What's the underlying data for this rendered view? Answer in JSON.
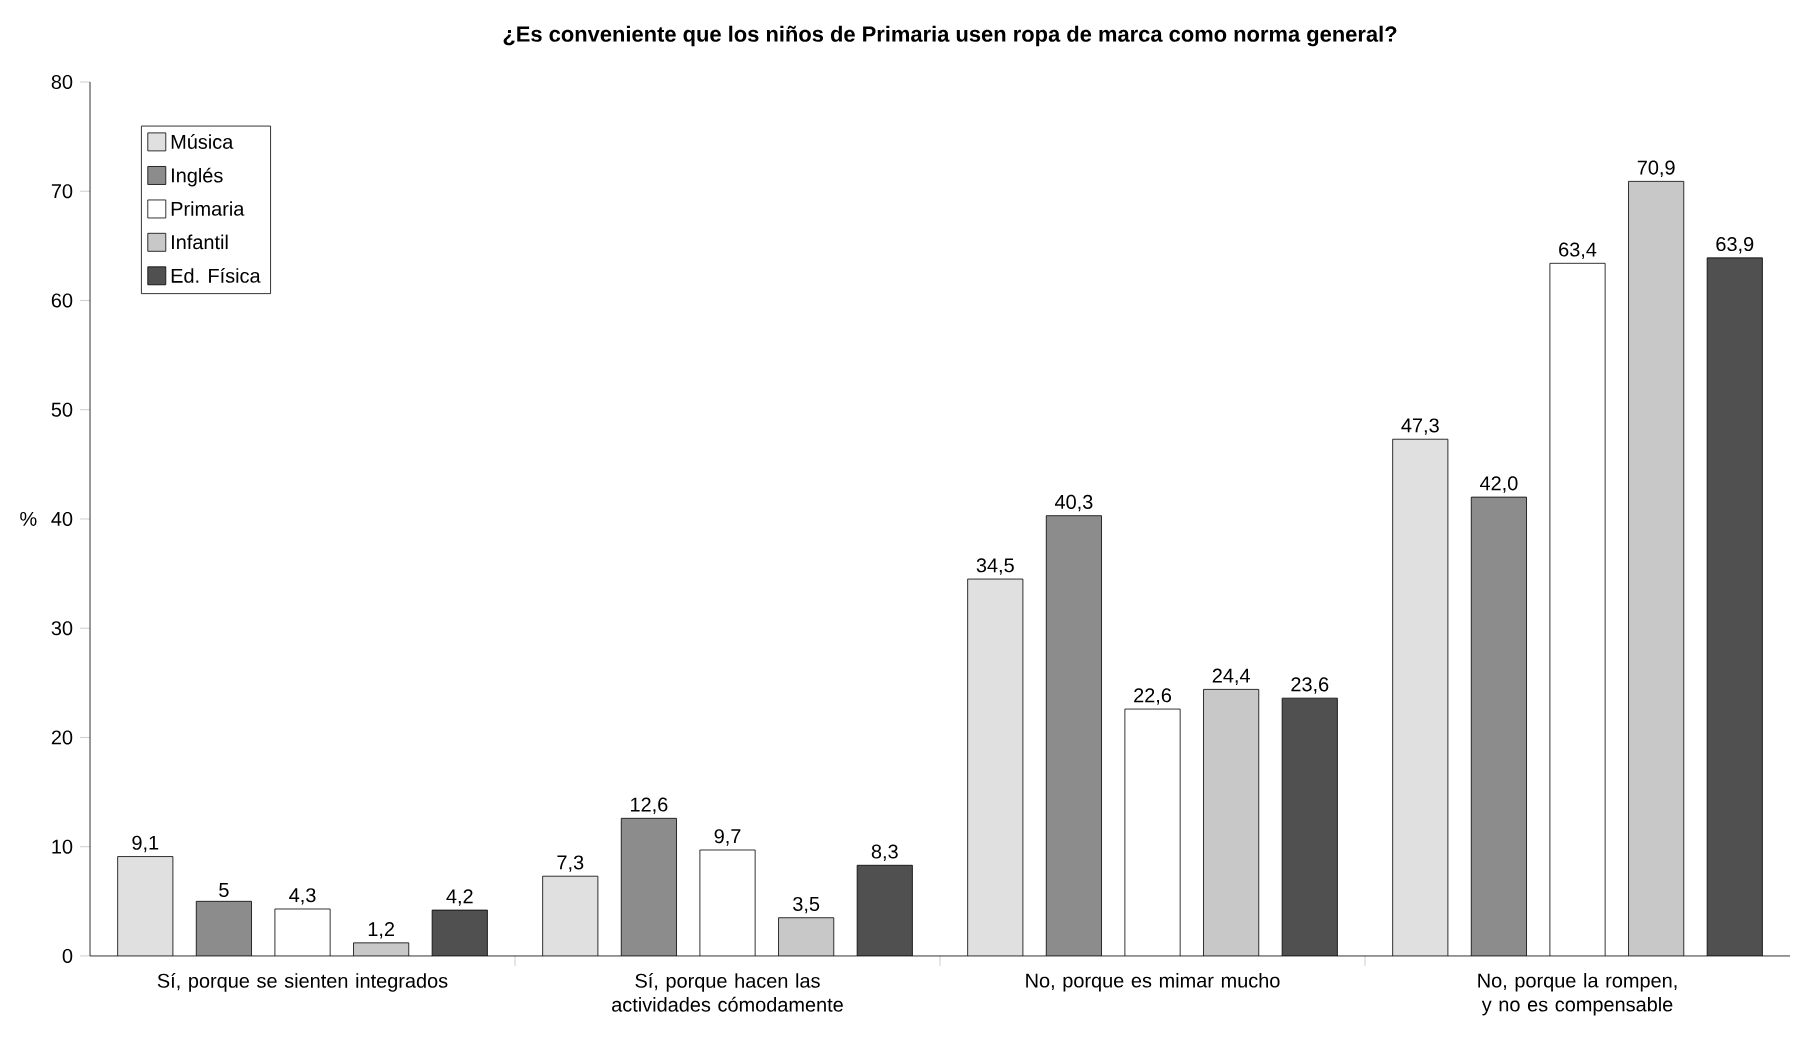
{
  "chart_data": {
    "type": "bar",
    "title": "¿Es conveniente que los niños de Primaria usen ropa de marca como norma general?",
    "ylabel": "%",
    "categories": [
      "Sí, porque se sienten integrados",
      "Sí, porque hacen las actividades cómodamente",
      "No, porque es mimar mucho",
      "No, porque la rompen, y no es compensable"
    ],
    "series": [
      {
        "name": "Música",
        "color": "#e0e0e0",
        "values": [
          9.1,
          7.3,
          34.5,
          47.3
        ],
        "value_labels": [
          "9,1",
          "7,3",
          "34,5",
          "47,3"
        ]
      },
      {
        "name": "Inglés",
        "color": "#8c8c8c",
        "values": [
          5,
          12.6,
          40.3,
          42.0
        ],
        "value_labels": [
          "5",
          "12,6",
          "40,3",
          "42,0"
        ]
      },
      {
        "name": "Primaria",
        "color": "#ffffff",
        "values": [
          4.3,
          9.7,
          22.6,
          63.4
        ],
        "value_labels": [
          "4,3",
          "9,7",
          "22,6",
          "63,4"
        ]
      },
      {
        "name": "Infantil",
        "color": "#c8c8c8",
        "values": [
          1.2,
          3.5,
          24.4,
          70.9
        ],
        "value_labels": [
          "1,2",
          "3,5",
          "24,4",
          "70,9"
        ]
      },
      {
        "name": "Ed. Física",
        "color": "#505050",
        "values": [
          4.2,
          8.3,
          23.6,
          63.9
        ],
        "value_labels": [
          "4,2",
          "8,3",
          "23,6",
          "63,9"
        ]
      }
    ],
    "ylim": [
      0,
      80
    ],
    "yticks": [
      0,
      10,
      20,
      30,
      40,
      50,
      60,
      70,
      80
    ],
    "legend": "top left",
    "grid": false
  }
}
